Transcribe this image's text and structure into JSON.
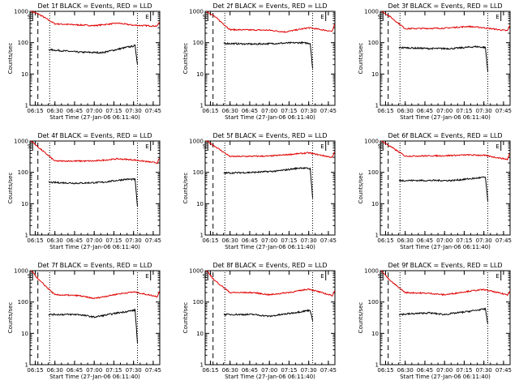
{
  "chart_data": {
    "type": "line",
    "y_scale": "log",
    "ylim": [
      1,
      1000
    ],
    "xlim": [
      "06:11",
      "07:50"
    ],
    "ylabel": "Counts/sec",
    "xlabel": "Start Time (27-Jan-06 06:11:40)",
    "x_ticks": [
      "06:15",
      "06:30",
      "06:45",
      "07:00",
      "07:15",
      "07:30",
      "07:45"
    ],
    "y_ticks": [
      "1",
      "10",
      "100",
      "1000"
    ],
    "markers": [
      {
        "label": "S",
        "time": "06:13",
        "style": "solid"
      },
      {
        "label": "E",
        "time": "07:43",
        "style": "solid"
      }
    ],
    "vlines": [
      {
        "time": "06:17",
        "style": "dashed"
      },
      {
        "time": "06:26",
        "style": "dotted"
      },
      {
        "time": "07:33",
        "style": "dotted"
      }
    ],
    "series_colors": {
      "events": "#000000",
      "lld": "#e00000"
    },
    "panels": [
      {
        "title": "Det 1f BLACK = Events, RED = LLD",
        "lld": [
          [
            6.2,
            1000
          ],
          [
            6.3,
            800
          ],
          [
            6.5,
            400
          ],
          [
            7,
            350
          ],
          [
            7.3,
            420
          ],
          [
            7.5,
            360
          ],
          [
            7.8,
            340
          ],
          [
            7.83,
            450
          ]
        ],
        "events": [
          [
            6.42,
            60
          ],
          [
            6.8,
            50
          ],
          [
            7.1,
            48
          ],
          [
            7.4,
            70
          ],
          [
            7.52,
            80
          ],
          [
            7.55,
            20
          ]
        ]
      },
      {
        "title": "Det 2f BLACK = Events, RED = LLD",
        "lld": [
          [
            6.2,
            1000
          ],
          [
            6.3,
            700
          ],
          [
            6.5,
            260
          ],
          [
            7,
            250
          ],
          [
            7.2,
            220
          ],
          [
            7.5,
            300
          ],
          [
            7.8,
            230
          ],
          [
            7.83,
            380
          ]
        ],
        "events": [
          [
            6.42,
            95
          ],
          [
            6.8,
            90
          ],
          [
            7.1,
            95
          ],
          [
            7.4,
            100
          ],
          [
            7.52,
            95
          ],
          [
            7.55,
            15
          ]
        ]
      },
      {
        "title": "Det 3f BLACK = Events, RED = LLD",
        "lld": [
          [
            6.2,
            1000
          ],
          [
            6.3,
            700
          ],
          [
            6.5,
            280
          ],
          [
            7,
            290
          ],
          [
            7.3,
            330
          ],
          [
            7.5,
            300
          ],
          [
            7.8,
            240
          ],
          [
            7.83,
            350
          ]
        ],
        "events": [
          [
            6.42,
            70
          ],
          [
            6.8,
            65
          ],
          [
            7.1,
            65
          ],
          [
            7.4,
            75
          ],
          [
            7.52,
            70
          ],
          [
            7.55,
            12
          ]
        ]
      },
      {
        "title": "Det 4f BLACK = Events, RED = LLD",
        "lld": [
          [
            6.2,
            1000
          ],
          [
            6.3,
            600
          ],
          [
            6.5,
            230
          ],
          [
            7,
            230
          ],
          [
            7.3,
            270
          ],
          [
            7.5,
            250
          ],
          [
            7.8,
            200
          ],
          [
            7.83,
            280
          ]
        ],
        "events": [
          [
            6.42,
            48
          ],
          [
            6.8,
            45
          ],
          [
            7.1,
            48
          ],
          [
            7.4,
            60
          ],
          [
            7.52,
            60
          ],
          [
            7.55,
            8
          ]
        ]
      },
      {
        "title": "Det 5f BLACK = Events, RED = LLD",
        "lld": [
          [
            6.2,
            1000
          ],
          [
            6.3,
            700
          ],
          [
            6.5,
            320
          ],
          [
            7,
            330
          ],
          [
            7.3,
            380
          ],
          [
            7.5,
            420
          ],
          [
            7.8,
            300
          ],
          [
            7.83,
            450
          ]
        ],
        "events": [
          [
            6.42,
            95
          ],
          [
            6.8,
            100
          ],
          [
            7.1,
            110
          ],
          [
            7.4,
            140
          ],
          [
            7.52,
            130
          ],
          [
            7.55,
            15
          ]
        ]
      },
      {
        "title": "Det 6f BLACK = Events, RED = LLD",
        "lld": [
          [
            6.2,
            1000
          ],
          [
            6.3,
            700
          ],
          [
            6.5,
            330
          ],
          [
            7,
            340
          ],
          [
            7.3,
            360
          ],
          [
            7.5,
            350
          ],
          [
            7.8,
            260
          ],
          [
            7.83,
            400
          ]
        ],
        "events": [
          [
            6.42,
            55
          ],
          [
            6.8,
            55
          ],
          [
            7.1,
            55
          ],
          [
            7.4,
            65
          ],
          [
            7.52,
            70
          ],
          [
            7.55,
            12
          ]
        ]
      },
      {
        "title": "Det 7f BLACK = Events, RED = LLD",
        "lld": [
          [
            6.2,
            1000
          ],
          [
            6.3,
            500
          ],
          [
            6.5,
            170
          ],
          [
            6.8,
            160
          ],
          [
            7,
            130
          ],
          [
            7.3,
            180
          ],
          [
            7.5,
            210
          ],
          [
            7.8,
            150
          ],
          [
            7.83,
            220
          ]
        ],
        "events": [
          [
            6.42,
            40
          ],
          [
            6.8,
            40
          ],
          [
            7,
            33
          ],
          [
            7.3,
            45
          ],
          [
            7.52,
            55
          ],
          [
            7.55,
            5
          ]
        ]
      },
      {
        "title": "Det 8f BLACK = Events, RED = LLD",
        "lld": [
          [
            6.2,
            1000
          ],
          [
            6.3,
            500
          ],
          [
            6.5,
            200
          ],
          [
            6.8,
            200
          ],
          [
            7,
            170
          ],
          [
            7.3,
            210
          ],
          [
            7.5,
            260
          ],
          [
            7.8,
            160
          ],
          [
            7.83,
            230
          ]
        ],
        "events": [
          [
            6.42,
            40
          ],
          [
            6.8,
            40
          ],
          [
            7,
            35
          ],
          [
            7.3,
            45
          ],
          [
            7.52,
            55
          ],
          [
            7.55,
            25
          ]
        ]
      },
      {
        "title": "Det 9f BLACK = Events, RED = LLD",
        "lld": [
          [
            6.2,
            1000
          ],
          [
            6.3,
            500
          ],
          [
            6.5,
            200
          ],
          [
            6.8,
            190
          ],
          [
            7,
            170
          ],
          [
            7.3,
            220
          ],
          [
            7.5,
            250
          ],
          [
            7.8,
            170
          ],
          [
            7.83,
            220
          ]
        ],
        "events": [
          [
            6.42,
            40
          ],
          [
            6.8,
            45
          ],
          [
            7,
            40
          ],
          [
            7.3,
            50
          ],
          [
            7.52,
            60
          ],
          [
            7.55,
            20
          ]
        ]
      }
    ]
  }
}
